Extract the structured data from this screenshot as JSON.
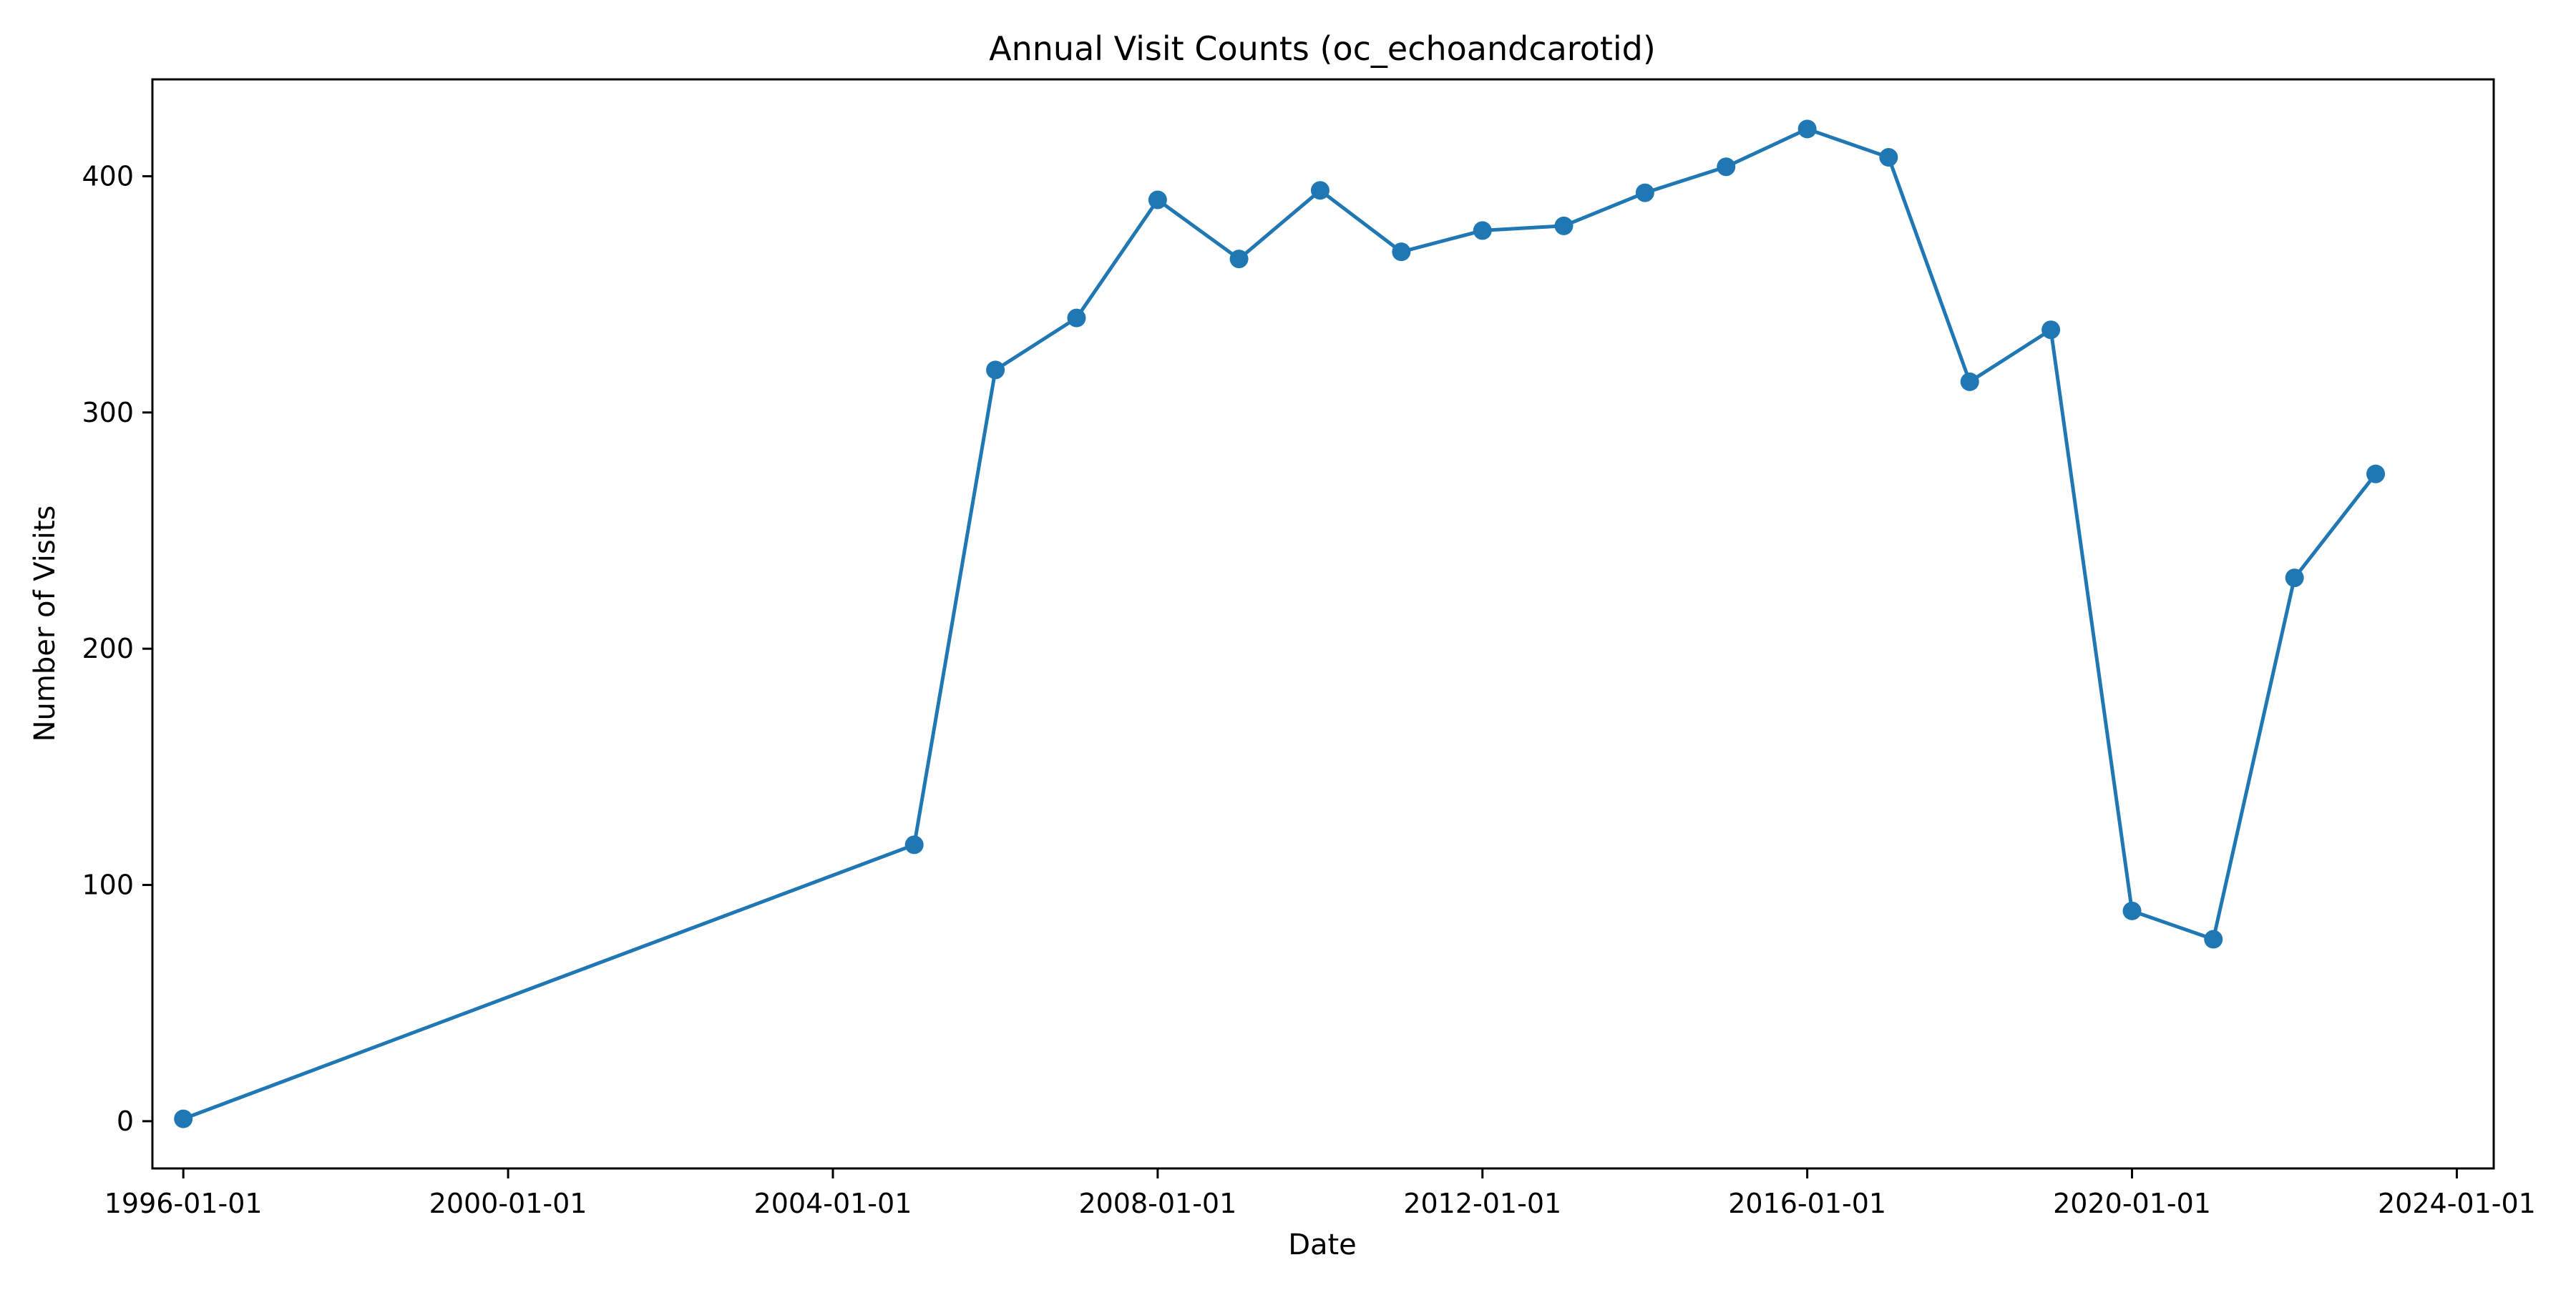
{
  "chart_data": {
    "type": "line",
    "title": "Annual Visit Counts (oc_echoandcarotid)",
    "xlabel": "Date",
    "ylabel": "Number of Visits",
    "x_tick_labels": [
      "1996-01-01",
      "2000-01-01",
      "2004-01-01",
      "2008-01-01",
      "2012-01-01",
      "2016-01-01",
      "2020-01-01",
      "2024-01-01"
    ],
    "y_ticks": [
      0,
      100,
      200,
      300,
      400
    ],
    "xlim": [
      "1995-08-15",
      "2024-06-15"
    ],
    "ylim": [
      -20,
      441
    ],
    "grid": false,
    "colors": {
      "series": "#1f77b4"
    },
    "series": [
      {
        "x": [
          "1996-01-01",
          "2005-01-01",
          "2006-01-01",
          "2007-01-01",
          "2008-01-01",
          "2009-01-01",
          "2010-01-01",
          "2011-01-01",
          "2012-01-01",
          "2013-01-01",
          "2014-01-01",
          "2015-01-01",
          "2016-01-01",
          "2017-01-01",
          "2018-01-01",
          "2019-01-01",
          "2020-01-01",
          "2021-01-01",
          "2022-01-01",
          "2023-01-01"
        ],
        "values": [
          1,
          117,
          318,
          340,
          390,
          365,
          394,
          368,
          377,
          379,
          393,
          404,
          420,
          408,
          313,
          335,
          89,
          77,
          230,
          274
        ]
      }
    ]
  }
}
